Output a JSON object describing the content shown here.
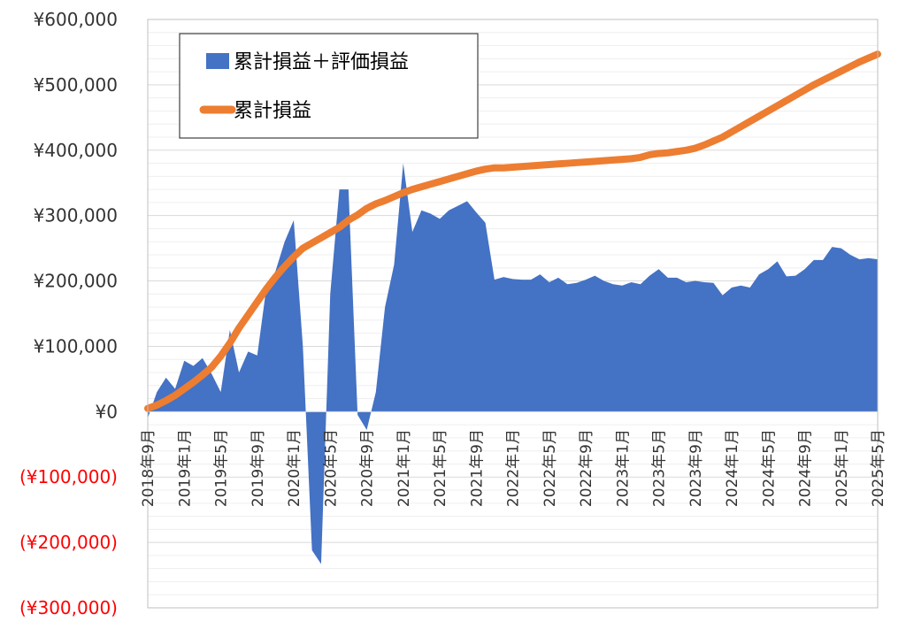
{
  "chart_data": {
    "type": "area",
    "ylim": [
      -300000,
      600000
    ],
    "y_ticks": [
      {
        "value": 600000,
        "label": "¥600,000"
      },
      {
        "value": 500000,
        "label": "¥500,000"
      },
      {
        "value": 400000,
        "label": "¥400,000"
      },
      {
        "value": 300000,
        "label": "¥300,000"
      },
      {
        "value": 200000,
        "label": "¥200,000"
      },
      {
        "value": 100000,
        "label": "¥100,000"
      },
      {
        "value": 0,
        "label": "¥0"
      },
      {
        "value": -100000,
        "label": "(¥100,000)"
      },
      {
        "value": -200000,
        "label": "(¥200,000)"
      },
      {
        "value": -300000,
        "label": "(¥300,000)"
      }
    ],
    "x_ticks": [
      "2018年9月",
      "2019年1月",
      "2019年5月",
      "2019年9月",
      "2020年1月",
      "2020年5月",
      "2020年9月",
      "2021年1月",
      "2021年5月",
      "2021年9月",
      "2022年1月",
      "2022年5月",
      "2022年9月",
      "2023年1月",
      "2023年5月",
      "2023年9月",
      "2024年1月",
      "2024年5月",
      "2024年9月",
      "2025年1月",
      "2025年5月"
    ],
    "x": [
      "2018-09",
      "2018-10",
      "2018-11",
      "2018-12",
      "2019-01",
      "2019-02",
      "2019-03",
      "2019-04",
      "2019-05",
      "2019-06",
      "2019-07",
      "2019-08",
      "2019-09",
      "2019-10",
      "2019-11",
      "2019-12",
      "2020-01",
      "2020-02",
      "2020-03",
      "2020-04",
      "2020-05",
      "2020-06",
      "2020-07",
      "2020-08",
      "2020-09",
      "2020-10",
      "2020-11",
      "2020-12",
      "2021-01",
      "2021-02",
      "2021-03",
      "2021-04",
      "2021-05",
      "2021-06",
      "2021-07",
      "2021-08",
      "2021-09",
      "2021-10",
      "2021-11",
      "2021-12",
      "2022-01",
      "2022-02",
      "2022-03",
      "2022-04",
      "2022-05",
      "2022-06",
      "2022-07",
      "2022-08",
      "2022-09",
      "2022-10",
      "2022-11",
      "2022-12",
      "2023-01",
      "2023-02",
      "2023-03",
      "2023-04",
      "2023-05",
      "2023-06",
      "2023-07",
      "2023-08",
      "2023-09",
      "2023-10",
      "2023-11",
      "2023-12",
      "2024-01",
      "2024-02",
      "2024-03",
      "2024-04",
      "2024-05",
      "2024-06",
      "2024-07",
      "2024-08",
      "2024-09",
      "2024-10",
      "2024-11",
      "2024-12",
      "2025-01",
      "2025-02",
      "2025-03",
      "2025-04",
      "2025-05"
    ],
    "series": [
      {
        "name": "累計損益＋評価損益",
        "type": "area",
        "color": "#4472c4",
        "values": [
          -10000,
          30000,
          52000,
          35000,
          78000,
          70000,
          82000,
          58000,
          30000,
          125000,
          60000,
          92000,
          86000,
          190000,
          215000,
          260000,
          293000,
          100000,
          -212000,
          -233000,
          180000,
          340000,
          340000,
          -5000,
          -28000,
          30000,
          160000,
          225000,
          380000,
          275000,
          308000,
          303000,
          295000,
          308000,
          315000,
          322000,
          305000,
          289000,
          202000,
          206000,
          203000,
          202000,
          202000,
          210000,
          198000,
          205000,
          195000,
          197000,
          202000,
          208000,
          200000,
          195000,
          193000,
          198000,
          195000,
          208000,
          218000,
          205000,
          205000,
          198000,
          200000,
          198000,
          197000,
          178000,
          190000,
          193000,
          190000,
          210000,
          218000,
          230000,
          207000,
          208000,
          218000,
          232000,
          232000,
          252000,
          250000,
          240000,
          233000,
          235000,
          233000
        ]
      },
      {
        "name": "累計損益",
        "type": "line",
        "color": "#ed7d31",
        "values": [
          5000,
          10000,
          17000,
          25000,
          35000,
          45000,
          56000,
          68000,
          85000,
          105000,
          128000,
          148000,
          168000,
          188000,
          206000,
          222000,
          237000,
          250000,
          258000,
          266000,
          274000,
          282000,
          293000,
          301000,
          311000,
          318000,
          323000,
          329000,
          335000,
          340000,
          344000,
          348000,
          352000,
          356000,
          360000,
          364000,
          368000,
          371000,
          373000,
          373000,
          374000,
          375000,
          376000,
          377000,
          378000,
          379000,
          380000,
          381000,
          382000,
          383000,
          384000,
          385000,
          386000,
          387000,
          389000,
          393000,
          395000,
          396000,
          398000,
          400000,
          403000,
          408000,
          414000,
          420000,
          428000,
          436000,
          444000,
          452000,
          460000,
          468000,
          476000,
          484000,
          492000,
          500000,
          507000,
          514000,
          521000,
          528000,
          535000,
          541000,
          547000
        ]
      }
    ],
    "legend": {
      "placement": "top-left"
    },
    "grid": true
  }
}
